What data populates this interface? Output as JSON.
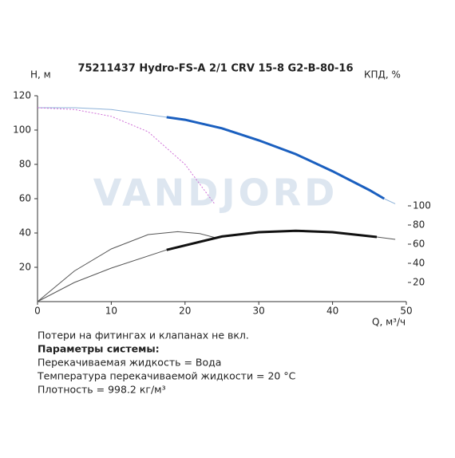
{
  "chart_data": {
    "type": "line",
    "title": "75211437 Hydro-FS-A 2/1 CRV 15-8 G2-B-80-16",
    "ylabel": "H, м",
    "y2label": "КПД, %",
    "xlabel": "Q, м³/ч",
    "watermark": "VANDJORD",
    "xlim": [
      0,
      50
    ],
    "xticks": [
      0,
      10,
      20,
      30,
      40,
      50
    ],
    "ylim": [
      0,
      120
    ],
    "yticks": [
      20,
      40,
      60,
      80,
      100,
      120
    ],
    "y2lim": [
      0,
      215
    ],
    "y2ticks": [
      20,
      40,
      60,
      80,
      100
    ],
    "series": [
      {
        "color": "#8fb3d9",
        "line_width": 1,
        "x": [
          0,
          5,
          10,
          15,
          17.5
        ],
        "values": [
          113,
          113,
          112,
          109,
          107.5
        ]
      },
      {
        "color": "#1a5fbf",
        "line_width": 3,
        "x": [
          17.5,
          20,
          25,
          30,
          35,
          40,
          45,
          47
        ],
        "values": [
          107.5,
          106,
          101,
          94,
          86,
          76,
          65,
          60
        ]
      },
      {
        "color": "#8fb3d9",
        "line_width": 1,
        "x": [
          47,
          48.5
        ],
        "values": [
          60,
          57
        ]
      },
      {
        "color": "#d070d8",
        "line_width": 1,
        "dashed": true,
        "x": [
          0,
          5,
          10,
          15,
          20,
          24
        ],
        "values": [
          113,
          112,
          108,
          99,
          80,
          57
        ]
      },
      {
        "color": "#555555",
        "line_width": 1,
        "axis": "y2",
        "x": [
          0,
          5,
          10,
          15,
          19,
          22,
          24
        ],
        "values": [
          0,
          32,
          55,
          70,
          73,
          71,
          67
        ]
      },
      {
        "color": "#555555",
        "line_width": 1,
        "axis": "y2",
        "x": [
          0,
          5,
          10,
          17.5
        ],
        "values": [
          0,
          20,
          35,
          54
        ]
      },
      {
        "color": "#111111",
        "line_width": 3,
        "axis": "y2",
        "x": [
          17.5,
          25,
          30,
          35,
          40,
          46
        ],
        "values": [
          54,
          68,
          72.5,
          74,
          72.5,
          67.5
        ]
      },
      {
        "color": "#555555",
        "line_width": 1,
        "axis": "y2",
        "x": [
          46,
          48.5
        ],
        "values": [
          67.5,
          65
        ]
      }
    ],
    "notes": [
      "Потери на фитингах и клапанах не вкл.",
      "Параметры системы:",
      "Перекачиваемая жидкость = Вода",
      "Температура перекачиваемой жидкости = 20 °C",
      "Плотность = 998.2 кг/м³"
    ]
  }
}
